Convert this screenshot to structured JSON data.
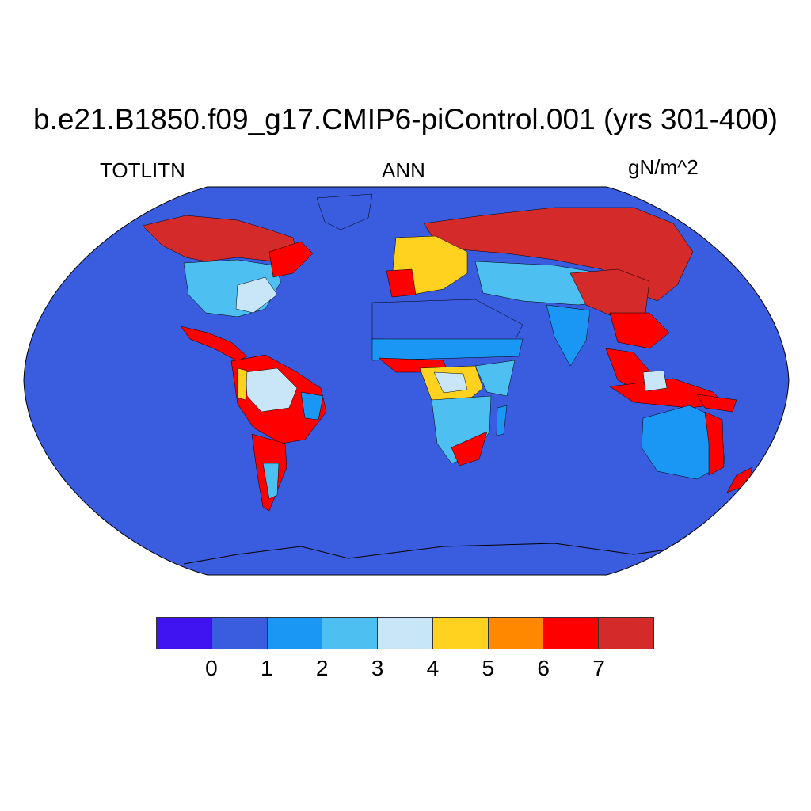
{
  "title": "b.e21.B1850.f09_g17.CMIP6-piControl.001 (yrs 301-400)",
  "left_label": "TOTLITN",
  "center_label": "ANN",
  "right_label": "gN/m^2",
  "ocean_color": "#3a5de0",
  "map_region_colors": {
    "low": "#3a5de0",
    "mid_blue": "#1a96f5",
    "light_blue": "#4dbff0",
    "pale": "#c8e6f8",
    "yellow": "#ffd21f",
    "orange": "#ff8800",
    "red": "#ff0000",
    "dark_red": "#d42a2a"
  },
  "colorbar": {
    "colors": [
      "#4014f0",
      "#3a5de0",
      "#1a96f5",
      "#4dbff0",
      "#c8e6f8",
      "#ffd21f",
      "#ff8800",
      "#ff0000",
      "#d42a2a"
    ],
    "tick_labels": [
      "0",
      "1",
      "2",
      "3",
      "4",
      "5",
      "6",
      "7"
    ]
  }
}
